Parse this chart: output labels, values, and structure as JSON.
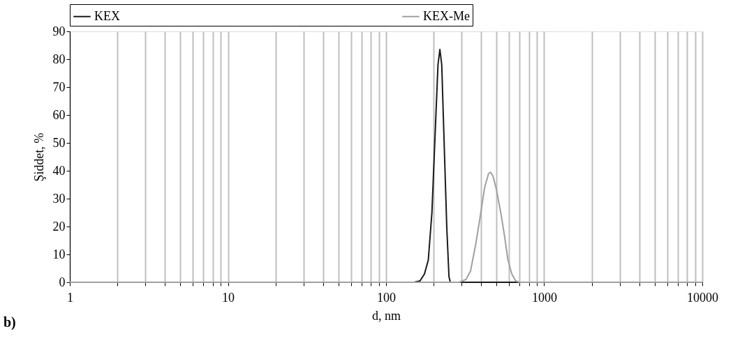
{
  "chart_data": {
    "type": "line",
    "xlabel": "d, nm",
    "ylabel": "Şiddet, %",
    "log": "x",
    "grid": "x",
    "legend": "top",
    "line_style": "solid",
    "marker": "none",
    "xlim": [
      1,
      10000
    ],
    "ylim": [
      0,
      90
    ],
    "yticks": [
      0,
      10,
      20,
      30,
      40,
      50,
      60,
      70,
      80,
      90
    ],
    "xticks": [
      1,
      {
        "value": 2,
        "label": null
      },
      {
        "value": 3,
        "label": null
      },
      {
        "value": 4,
        "label": null
      },
      {
        "value": 5,
        "label": null
      },
      {
        "value": 6,
        "label": null
      },
      {
        "value": 7,
        "label": null
      },
      {
        "value": 8,
        "label": null
      },
      {
        "value": 9,
        "label": null
      },
      10,
      {
        "value": 20,
        "label": null
      },
      {
        "value": 30,
        "label": null
      },
      {
        "value": 40,
        "label": null
      },
      {
        "value": 50,
        "label": null
      },
      {
        "value": 60,
        "label": null
      },
      {
        "value": 70,
        "label": null
      },
      {
        "value": 80,
        "label": null
      },
      {
        "value": 90,
        "label": null
      },
      100,
      {
        "value": 200,
        "label": null
      },
      {
        "value": 300,
        "label": null
      },
      {
        "value": 400,
        "label": null
      },
      {
        "value": 500,
        "label": null
      },
      {
        "value": 600,
        "label": null
      },
      {
        "value": 700,
        "label": null
      },
      {
        "value": 800,
        "label": null
      },
      {
        "value": 900,
        "label": null
      },
      1000,
      {
        "value": 2000,
        "label": null
      },
      {
        "value": 3000,
        "label": null
      },
      {
        "value": 4000,
        "label": null
      },
      {
        "value": 5000,
        "label": null
      },
      {
        "value": 6000,
        "label": null
      },
      {
        "value": 7000,
        "label": null
      },
      {
        "value": 8000,
        "label": null
      },
      {
        "value": 9000,
        "label": null
      },
      10000
    ],
    "annotations": [
      "b)"
    ],
    "series": [
      {
        "name": "KEX",
        "color": "#1a1a1a",
        "x": [
          1,
          150,
          164,
          175,
          185,
          195,
          205,
          213,
          219,
          225,
          233,
          242,
          250,
          255,
          680
        ],
        "values": [
          0,
          0,
          0.5,
          3,
          8,
          25,
          55,
          78,
          83.5,
          78,
          50,
          20,
          2,
          0,
          0
        ]
      },
      {
        "name": "KEX-Me",
        "color": "#a0a0a0",
        "x": [
          1,
          290,
          320,
          342,
          370,
          395,
          420,
          445,
          458,
          475,
          500,
          535,
          560,
          590,
          624,
          660,
          700,
          10000
        ],
        "values": [
          0,
          0,
          1,
          4,
          14,
          24,
          34,
          39,
          39.5,
          38,
          33,
          24,
          17,
          8,
          3,
          0.5,
          0,
          0
        ]
      }
    ]
  }
}
